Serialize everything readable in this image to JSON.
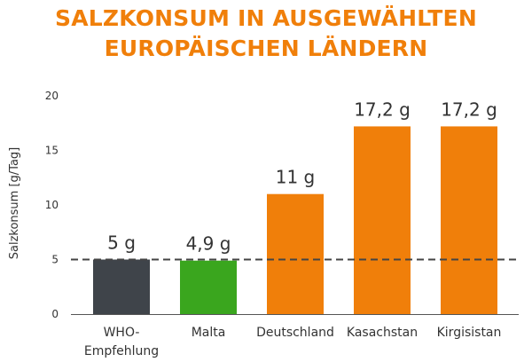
{
  "title_lines": [
    "SALZKONSUM IN AUSGEWÄHLTEN",
    "EUROPÄISCHEN LÄNDERN"
  ],
  "colors": {
    "title": "#f07f0a",
    "who": "#3f444a",
    "malta": "#3aa61e",
    "country": "#f07f0a",
    "reference_line": "#444444",
    "axis": "#555555"
  },
  "chart_data": {
    "type": "bar",
    "title": "SALZKONSUM IN AUSGEWÄHLTEN EUROPÄISCHEN LÄNDERN",
    "categories": [
      "WHO-\nEmpfehlung",
      "Malta",
      "Deutschland",
      "Kasachstan",
      "Kirgisistan"
    ],
    "category_lines": [
      [
        "WHO-",
        "Empfehlung"
      ],
      [
        "Malta"
      ],
      [
        "Deutschland"
      ],
      [
        "Kasachstan"
      ],
      [
        "Kirgisistan"
      ]
    ],
    "values": [
      5,
      4.9,
      11,
      17.2,
      17.2
    ],
    "data_labels": [
      "5 g",
      "4,9 g",
      "11 g",
      "17,2 g",
      "17,2 g"
    ],
    "bar_colors": [
      "#3f444a",
      "#3aa61e",
      "#f07f0a",
      "#f07f0a",
      "#f07f0a"
    ],
    "ylabel": "Salzkonsum [g/Tag]",
    "ylim": [
      0,
      20
    ],
    "yticks": [
      0,
      5,
      10,
      15,
      20
    ],
    "reference_line": {
      "value": 5,
      "style": "dashed"
    },
    "grid": false
  }
}
